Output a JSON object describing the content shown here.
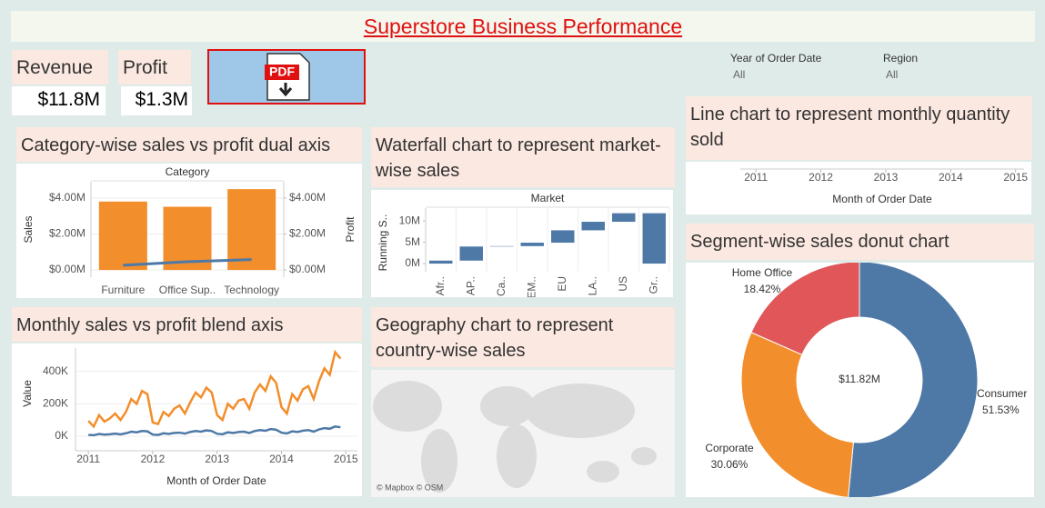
{
  "header": {
    "title": "Superstore Business Performance"
  },
  "kpis": [
    {
      "label": "Revenue",
      "value": "$11.8M"
    },
    {
      "label": "Profit",
      "value": "$1.3M"
    }
  ],
  "pdf_button": {
    "label": "PDF"
  },
  "filters": [
    {
      "label": "Year of Order Date",
      "value": "All"
    },
    {
      "label": "Region",
      "value": "All"
    }
  ],
  "chart_data": [
    {
      "type": "combo",
      "title": "Category-wise sales vs profit dual axis",
      "header": "Category",
      "categories": [
        "Furniture",
        "Office Sup..",
        "Technology"
      ],
      "series": [
        {
          "name": "Sales",
          "kind": "bar",
          "color": "#f28e2b",
          "values": [
            3800000,
            3510000,
            4490000
          ]
        },
        {
          "name": "Profit",
          "kind": "line",
          "color": "#4e79a7",
          "axis": "y2",
          "values": [
            260000,
            460000,
            580000
          ]
        }
      ],
      "ylim": [
        -400000,
        4900000
      ],
      "yticks": [
        {
          "value": 0,
          "label": "$0.00M"
        },
        {
          "value": 2000000,
          "label": "$2.00M"
        },
        {
          "value": 4000000,
          "label": "$4.00M"
        }
      ],
      "y2lim": [
        -400000,
        4900000
      ],
      "y2ticks": [
        {
          "value": 0,
          "label": "$0.00M"
        },
        {
          "value": 2000000,
          "label": "$2.00M"
        },
        {
          "value": 4000000,
          "label": "$4.00M"
        }
      ]
    },
    {
      "type": "waterfall",
      "title": "Waterfall chart to represent market-wise sales",
      "header": "Market",
      "ylabel": "Running S..",
      "categories": [
        "Afr..",
        "AP..",
        "Ca..",
        "EM..",
        "EU",
        "LA..",
        "US",
        "Gr.."
      ],
      "values": [
        700000,
        3300000,
        100000,
        800000,
        2900000,
        2000000,
        2000000,
        11800000
      ],
      "total": true,
      "color": "#4e79a7",
      "ylim": [
        -1900000,
        13000000
      ],
      "yticks": [
        {
          "value": 0,
          "label": "0M"
        },
        {
          "value": 5000000,
          "label": "5M"
        },
        {
          "value": 10000000,
          "label": "10M"
        }
      ]
    },
    {
      "type": "line",
      "title": "Monthly sales vs profit blend axis",
      "xlabel": "Month of Order Date",
      "ylabel": "Value",
      "x": [
        "2011-01",
        "2011-02",
        "2011-03",
        "2011-04",
        "2011-05",
        "2011-06",
        "2011-07",
        "2011-08",
        "2011-09",
        "2011-10",
        "2011-11",
        "2011-12",
        "2012-01",
        "2012-02",
        "2012-03",
        "2012-04",
        "2012-05",
        "2012-06",
        "2012-07",
        "2012-08",
        "2012-09",
        "2012-10",
        "2012-11",
        "2012-12",
        "2013-01",
        "2013-02",
        "2013-03",
        "2013-04",
        "2013-05",
        "2013-06",
        "2013-07",
        "2013-08",
        "2013-09",
        "2013-10",
        "2013-11",
        "2013-12",
        "2014-01",
        "2014-02",
        "2014-03",
        "2014-04",
        "2014-05",
        "2014-06",
        "2014-07",
        "2014-08",
        "2014-09",
        "2014-10",
        "2014-11",
        "2014-12"
      ],
      "series": [
        {
          "name": "Sales",
          "color": "#f28e2b",
          "values": [
            95000,
            60000,
            130000,
            90000,
            110000,
            140000,
            100000,
            150000,
            230000,
            200000,
            280000,
            260000,
            85000,
            75000,
            150000,
            125000,
            170000,
            190000,
            140000,
            210000,
            270000,
            240000,
            300000,
            270000,
            130000,
            100000,
            200000,
            170000,
            220000,
            230000,
            170000,
            270000,
            320000,
            280000,
            370000,
            330000,
            180000,
            140000,
            260000,
            220000,
            290000,
            310000,
            230000,
            340000,
            420000,
            380000,
            520000,
            480000
          ]
        },
        {
          "name": "Profit",
          "color": "#4e79a7",
          "values": [
            8000,
            6000,
            14000,
            10000,
            12000,
            16000,
            11000,
            18000,
            28000,
            24000,
            32000,
            30000,
            10000,
            8000,
            18000,
            14000,
            20000,
            22000,
            16000,
            26000,
            32000,
            28000,
            36000,
            32000,
            15000,
            12000,
            24000,
            20000,
            26000,
            28000,
            20000,
            32000,
            38000,
            34000,
            44000,
            40000,
            22000,
            17000,
            30000,
            26000,
            34000,
            38000,
            28000,
            42000,
            50000,
            46000,
            60000,
            55000
          ]
        }
      ],
      "xlim": [
        2010.8,
        2015.18
      ],
      "xticks": [
        2011,
        2012,
        2013,
        2014,
        2015
      ],
      "ylim": [
        -90000,
        545000
      ],
      "yticks": [
        {
          "value": 0,
          "label": "0K"
        },
        {
          "value": 200000,
          "label": "200K"
        },
        {
          "value": 400000,
          "label": "400K"
        }
      ]
    },
    {
      "type": "map",
      "title": "Geography chart to represent country-wise sales",
      "attribution": "© Mapbox © OSM"
    },
    {
      "type": "line",
      "title": "Line chart to represent monthly quantity sold",
      "xlabel": "Month of Order Date",
      "series": [],
      "xlim": [
        2010.76,
        2015.13
      ],
      "xticks": [
        2011,
        2012,
        2013,
        2014,
        2015
      ]
    },
    {
      "type": "donut",
      "title": "Segment-wise sales donut chart",
      "center_label": "$11.82M",
      "categories": [
        "Consumer",
        "Corporate",
        "Home Office"
      ],
      "values": [
        51.53,
        30.06,
        18.42
      ],
      "value_labels": [
        "51.53%",
        "30.06%",
        "18.42%"
      ],
      "colors": [
        "#4e79a7",
        "#f28e2b",
        "#e15759"
      ]
    }
  ]
}
